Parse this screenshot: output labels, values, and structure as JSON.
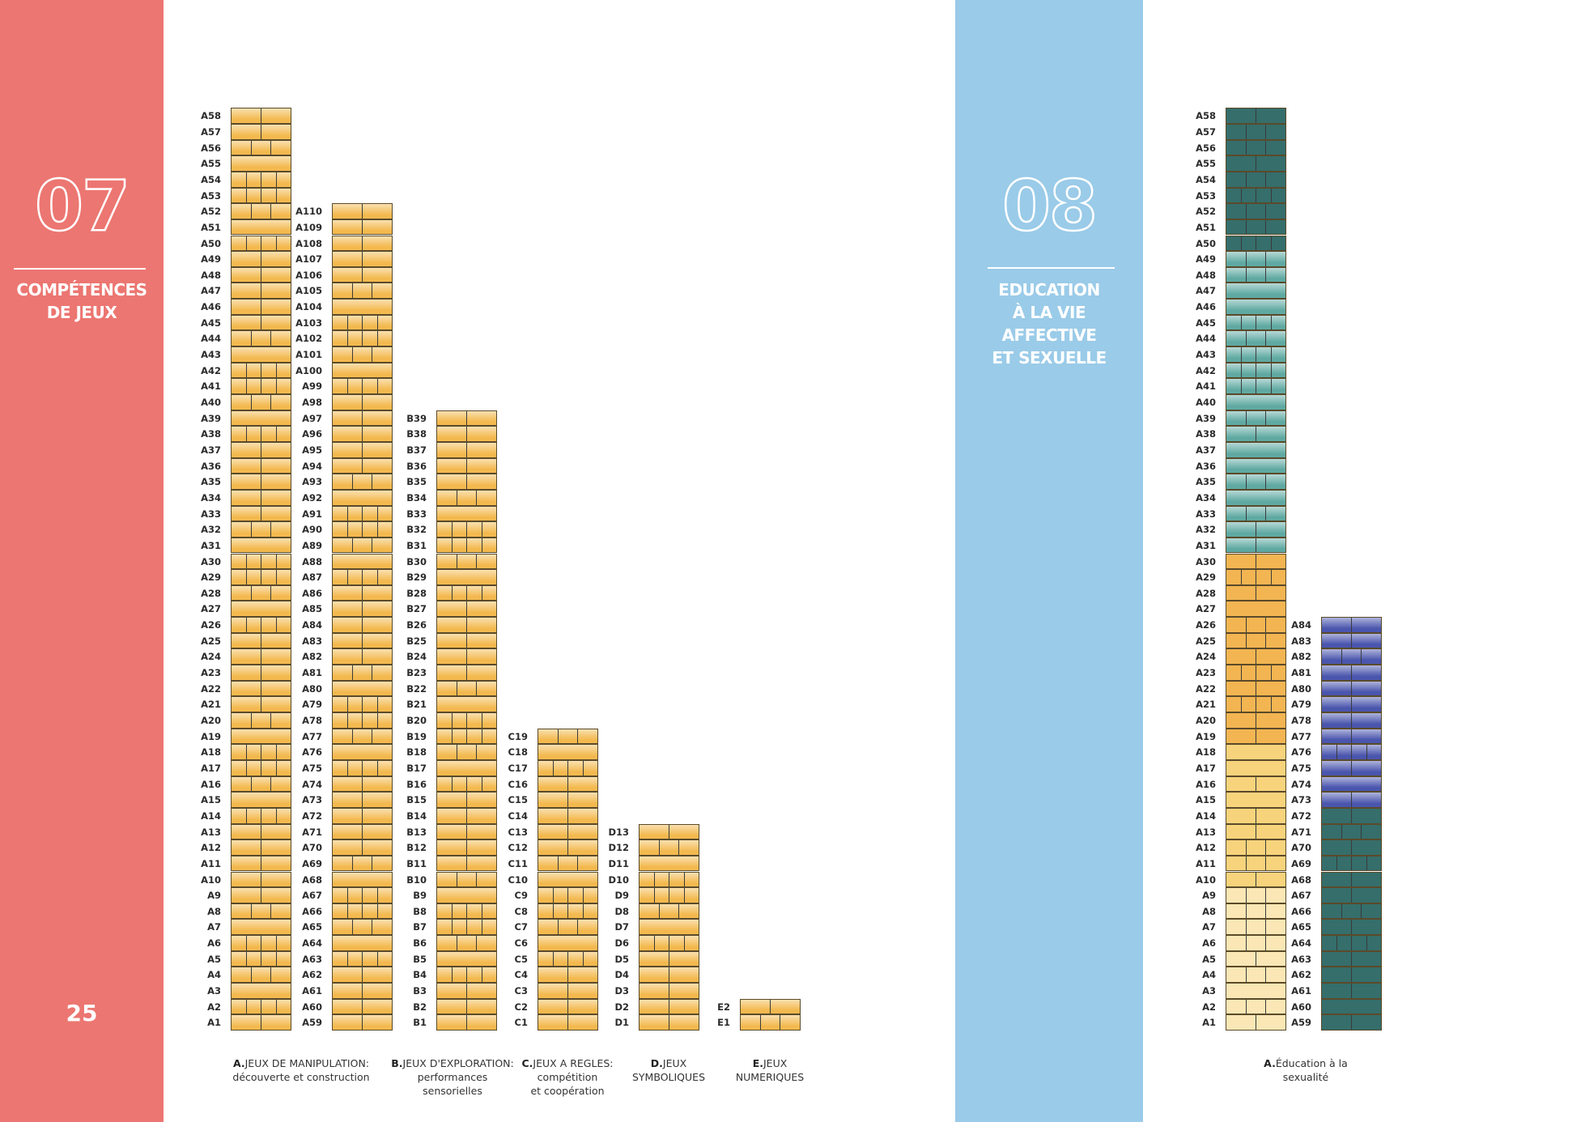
{
  "page_number": "25",
  "section_07": {
    "number": "07",
    "title_lines": [
      "COMPÉTENCES",
      "DE JEUX"
    ],
    "color": "#ec7671"
  },
  "section_08": {
    "number": "08",
    "title_lines": [
      "EDUCATION",
      "À LA VIE",
      "AFFECTIVE",
      "ET SEXUELLE"
    ],
    "color": "#9acbe8"
  },
  "chart_data": [
    {
      "type": "stacked-blocks",
      "section": "07",
      "columns": [
        {
          "prefix": "A",
          "from": 1,
          "to": 58,
          "color": "#f3b94f"
        },
        {
          "prefix": "A",
          "from": 59,
          "to": 110,
          "color": "#f3b94f"
        },
        {
          "prefix": "B",
          "from": 1,
          "to": 39,
          "color": "#f3b94f"
        },
        {
          "prefix": "C",
          "from": 1,
          "to": 19,
          "color": "#f3b94f"
        },
        {
          "prefix": "D",
          "from": 1,
          "to": 13,
          "color": "#f3b94f"
        },
        {
          "prefix": "E",
          "from": 1,
          "to": 2,
          "color": "#f3b94f"
        }
      ],
      "categories": [
        {
          "letter": "A.",
          "lines": [
            "JEUX DE MANIPULATION:",
            "découverte et construction"
          ]
        },
        {
          "letter": "B.",
          "lines": [
            "JEUX D'EXPLORATION:",
            "performances",
            "sensorielles"
          ]
        },
        {
          "letter": "C.",
          "lines": [
            "JEUX A REGLES:",
            "compétition",
            "et coopération"
          ]
        },
        {
          "letter": "D.",
          "lines": [
            "JEUX",
            "SYMBOLIQUES"
          ]
        },
        {
          "letter": "E.",
          "lines": [
            "JEUX",
            "NUMERIQUES"
          ]
        }
      ]
    },
    {
      "type": "stacked-blocks",
      "section": "08",
      "columns": [
        {
          "prefix": "A",
          "from": 1,
          "to": 58,
          "splits": [
            2,
            3,
            1,
            3,
            2,
            3,
            3,
            3,
            3,
            2,
            3,
            3,
            2,
            2,
            1,
            2,
            1,
            1,
            2,
            2,
            4,
            2,
            4,
            2,
            3,
            3,
            1,
            2,
            4,
            2,
            2,
            2,
            3,
            1,
            3,
            1,
            1,
            2,
            3,
            1,
            4,
            4,
            4,
            3,
            4,
            1,
            1,
            3,
            3,
            4,
            3,
            3,
            4,
            3,
            2,
            3,
            3,
            2
          ],
          "bands": [
            {
              "from": 1,
              "to": 9,
              "color": "#fbe7b5"
            },
            {
              "from": 10,
              "to": 18,
              "color": "#f7d37c"
            },
            {
              "from": 19,
              "to": 30,
              "color": "#f2b552"
            },
            {
              "from": 31,
              "to": 49,
              "color": "#5fa9a2"
            },
            {
              "from": 50,
              "to": 58,
              "color": "#356e6b"
            }
          ]
        },
        {
          "prefix": "A",
          "from": 59,
          "to": 84,
          "splits": [
            2,
            1,
            2,
            2,
            2,
            4,
            2,
            3,
            2,
            2,
            4,
            2,
            3,
            2,
            2,
            1,
            2,
            4,
            2,
            2,
            2,
            2,
            2,
            3,
            2,
            2
          ],
          "bands": [
            {
              "from": 59,
              "to": 72,
              "color": "#356e6b"
            },
            {
              "from": 73,
              "to": 84,
              "color": "#4a55ad"
            }
          ]
        }
      ],
      "categories": [
        {
          "letter": "A.",
          "lines": [
            "Éducation à la",
            "sexualité"
          ]
        }
      ]
    }
  ]
}
